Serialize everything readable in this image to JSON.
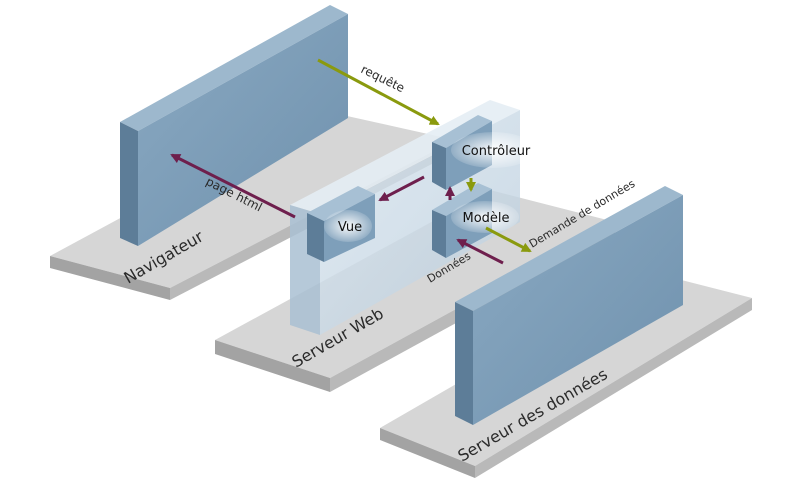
{
  "diagram": {
    "components": {
      "navigateur": "Navigateur",
      "serveur_web": "Serveur Web",
      "serveur_donnees": "Serveur des données"
    },
    "modules": {
      "controleur": "Contrôleur",
      "modele": "Modèle",
      "vue": "Vue"
    },
    "arrows": {
      "requete": "requête",
      "page_html": "page html",
      "demande": "Demande de données",
      "donnees": "Données"
    }
  },
  "colors": {
    "panel_front": "#7e9fba",
    "panel_dark": "#5d7d98",
    "panel_top": "#9db8cd",
    "platform_top": "#d6d6d6",
    "platform_side": "#a3a3a3",
    "glass": "#c9d8e5",
    "arrow_olive": "#8a9a0e",
    "arrow_maroon": "#6e1f4d"
  }
}
